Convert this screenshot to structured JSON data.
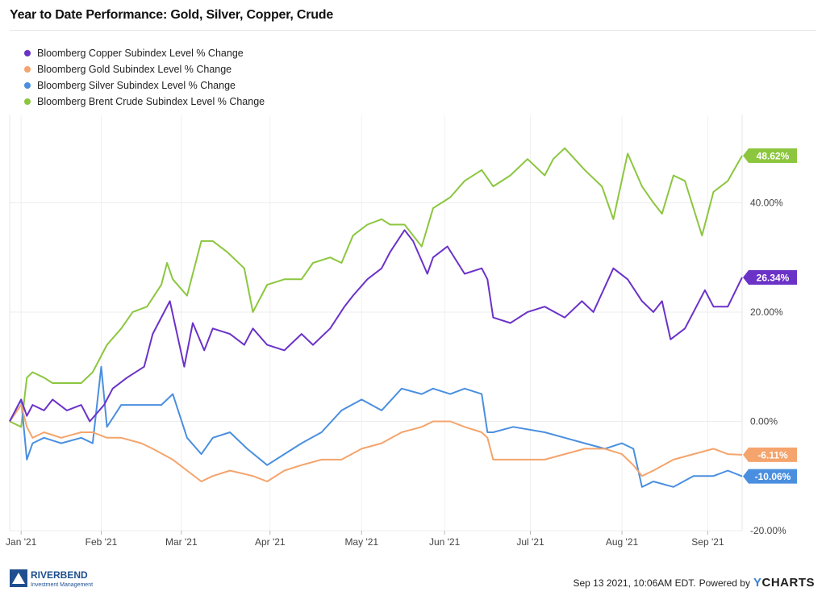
{
  "title": "Year to Date Performance: Gold, Silver, Copper, Crude",
  "footer": {
    "timestamp": "Sep 13 2021, 10:06AM EDT.",
    "powered_by": "Powered by",
    "brand": "CHARTS",
    "brand_y": "Y"
  },
  "logo": {
    "name": "RIVERBEND",
    "sub": "Investment Management"
  },
  "chart_data": {
    "type": "line",
    "y_unit": "% change",
    "ylim": [
      -20,
      56
    ],
    "x_range": [
      "2020-12-31",
      "2021-09-13"
    ],
    "y_ticks": [
      -20,
      0,
      20,
      40
    ],
    "y_tick_labels": [
      "-20.00%",
      "0.00%",
      "20.00%",
      "40.00%"
    ],
    "x_ticks": [
      {
        "date": "2021-01-04",
        "label": "Jan '21"
      },
      {
        "date": "2021-02-01",
        "label": "Feb '21"
      },
      {
        "date": "2021-03-01",
        "label": "Mar '21"
      },
      {
        "date": "2021-04-01",
        "label": "Apr '21"
      },
      {
        "date": "2021-05-03",
        "label": "May '21"
      },
      {
        "date": "2021-06-01",
        "label": "Jun '21"
      },
      {
        "date": "2021-07-01",
        "label": "Jul '21"
      },
      {
        "date": "2021-08-02",
        "label": "Aug '21"
      },
      {
        "date": "2021-09-01",
        "label": "Sep '21"
      }
    ],
    "grid": "horizontal",
    "legend_position": "top-left",
    "series": [
      {
        "name": "Bloomberg Copper Subindex Level % Change",
        "color": "#6b32c8",
        "last_label": "26.34%",
        "x": [
          "2020-12-31",
          "2021-01-04",
          "2021-01-06",
          "2021-01-08",
          "2021-01-12",
          "2021-01-15",
          "2021-01-20",
          "2021-01-25",
          "2021-01-28",
          "2021-02-02",
          "2021-02-05",
          "2021-02-10",
          "2021-02-16",
          "2021-02-19",
          "2021-02-23",
          "2021-02-25",
          "2021-03-02",
          "2021-03-05",
          "2021-03-09",
          "2021-03-12",
          "2021-03-18",
          "2021-03-23",
          "2021-03-26",
          "2021-03-31",
          "2021-04-06",
          "2021-04-12",
          "2021-04-16",
          "2021-04-22",
          "2021-04-27",
          "2021-04-30",
          "2021-05-05",
          "2021-05-10",
          "2021-05-13",
          "2021-05-18",
          "2021-05-21",
          "2021-05-26",
          "2021-05-28",
          "2021-06-02",
          "2021-06-08",
          "2021-06-14",
          "2021-06-16",
          "2021-06-18",
          "2021-06-24",
          "2021-06-30",
          "2021-07-06",
          "2021-07-13",
          "2021-07-19",
          "2021-07-23",
          "2021-07-30",
          "2021-08-04",
          "2021-08-09",
          "2021-08-13",
          "2021-08-16",
          "2021-08-19",
          "2021-08-24",
          "2021-08-31",
          "2021-09-03",
          "2021-09-08",
          "2021-09-13"
        ],
        "y": [
          0,
          4,
          1,
          3,
          2,
          4,
          2,
          3,
          0,
          3,
          6,
          8,
          10,
          16,
          20,
          22,
          10,
          18,
          13,
          17,
          16,
          14,
          17,
          14,
          13,
          16,
          14,
          17,
          21,
          23,
          26,
          28,
          31,
          35,
          33,
          27,
          30,
          32,
          27,
          28,
          26,
          19,
          18,
          20,
          21,
          19,
          22,
          20,
          28,
          26,
          22,
          20,
          22,
          15,
          17,
          24,
          21,
          21,
          26.34
        ]
      },
      {
        "name": "Bloomberg Gold Subindex Level % Change",
        "color": "#f4a46c",
        "last_label": "-6.11%",
        "x": [
          "2020-12-31",
          "2021-01-04",
          "2021-01-06",
          "2021-01-08",
          "2021-01-12",
          "2021-01-18",
          "2021-01-25",
          "2021-01-29",
          "2021-02-03",
          "2021-02-08",
          "2021-02-15",
          "2021-02-19",
          "2021-02-26",
          "2021-03-03",
          "2021-03-08",
          "2021-03-12",
          "2021-03-18",
          "2021-03-26",
          "2021-03-31",
          "2021-04-06",
          "2021-04-12",
          "2021-04-19",
          "2021-04-26",
          "2021-05-03",
          "2021-05-10",
          "2021-05-17",
          "2021-05-24",
          "2021-05-28",
          "2021-06-03",
          "2021-06-08",
          "2021-06-14",
          "2021-06-16",
          "2021-06-18",
          "2021-06-25",
          "2021-07-06",
          "2021-07-13",
          "2021-07-20",
          "2021-07-27",
          "2021-08-02",
          "2021-08-06",
          "2021-08-09",
          "2021-08-13",
          "2021-08-20",
          "2021-08-27",
          "2021-09-03",
          "2021-09-08",
          "2021-09-13"
        ],
        "y": [
          0,
          3,
          -1,
          -3,
          -2,
          -3,
          -2,
          -2,
          -3,
          -3,
          -4,
          -5,
          -7,
          -9,
          -11,
          -10,
          -9,
          -10,
          -11,
          -9,
          -8,
          -7,
          -7,
          -5,
          -4,
          -2,
          -1,
          0,
          0,
          -1,
          -2,
          -3,
          -7,
          -7,
          -7,
          -6,
          -5,
          -5,
          -6,
          -8,
          -10,
          -9,
          -7,
          -6,
          -5,
          -6,
          -6.11
        ]
      },
      {
        "name": "Bloomberg Silver Subindex Level % Change",
        "color": "#4a8fdf",
        "last_label": "-10.06%",
        "x": [
          "2020-12-31",
          "2021-01-04",
          "2021-01-06",
          "2021-01-08",
          "2021-01-12",
          "2021-01-18",
          "2021-01-25",
          "2021-01-29",
          "2021-02-01",
          "2021-02-03",
          "2021-02-08",
          "2021-02-15",
          "2021-02-22",
          "2021-02-26",
          "2021-03-03",
          "2021-03-08",
          "2021-03-12",
          "2021-03-18",
          "2021-03-24",
          "2021-03-31",
          "2021-04-06",
          "2021-04-12",
          "2021-04-19",
          "2021-04-26",
          "2021-05-03",
          "2021-05-10",
          "2021-05-17",
          "2021-05-24",
          "2021-05-28",
          "2021-06-03",
          "2021-06-08",
          "2021-06-14",
          "2021-06-16",
          "2021-06-18",
          "2021-06-25",
          "2021-07-06",
          "2021-07-13",
          "2021-07-20",
          "2021-07-27",
          "2021-08-02",
          "2021-08-06",
          "2021-08-09",
          "2021-08-13",
          "2021-08-20",
          "2021-08-27",
          "2021-09-03",
          "2021-09-08",
          "2021-09-13"
        ],
        "y": [
          0,
          4,
          -7,
          -4,
          -3,
          -4,
          -3,
          -4,
          10,
          -1,
          3,
          3,
          3,
          5,
          -3,
          -6,
          -3,
          -2,
          -5,
          -8,
          -6,
          -4,
          -2,
          2,
          4,
          2,
          6,
          5,
          6,
          5,
          6,
          5,
          -2,
          -2,
          -1,
          -2,
          -3,
          -4,
          -5,
          -4,
          -5,
          -12,
          -11,
          -12,
          -10,
          -10,
          -9,
          -10.06
        ]
      },
      {
        "name": "Bloomberg Brent Crude Subindex Level % Change",
        "color": "#8cc63f",
        "last_label": "48.62%",
        "x": [
          "2020-12-31",
          "2021-01-04",
          "2021-01-06",
          "2021-01-08",
          "2021-01-12",
          "2021-01-15",
          "2021-01-20",
          "2021-01-25",
          "2021-01-29",
          "2021-02-03",
          "2021-02-08",
          "2021-02-12",
          "2021-02-17",
          "2021-02-22",
          "2021-02-24",
          "2021-02-26",
          "2021-03-03",
          "2021-03-08",
          "2021-03-12",
          "2021-03-17",
          "2021-03-23",
          "2021-03-26",
          "2021-03-31",
          "2021-04-06",
          "2021-04-12",
          "2021-04-16",
          "2021-04-22",
          "2021-04-26",
          "2021-04-30",
          "2021-05-05",
          "2021-05-10",
          "2021-05-13",
          "2021-05-18",
          "2021-05-24",
          "2021-05-28",
          "2021-06-03",
          "2021-06-08",
          "2021-06-14",
          "2021-06-18",
          "2021-06-24",
          "2021-06-30",
          "2021-07-06",
          "2021-07-09",
          "2021-07-13",
          "2021-07-20",
          "2021-07-26",
          "2021-07-30",
          "2021-08-04",
          "2021-08-09",
          "2021-08-13",
          "2021-08-16",
          "2021-08-20",
          "2021-08-24",
          "2021-08-30",
          "2021-09-03",
          "2021-09-08",
          "2021-09-13"
        ],
        "y": [
          0,
          -1,
          8,
          9,
          8,
          7,
          7,
          7,
          9,
          14,
          17,
          20,
          21,
          25,
          29,
          26,
          23,
          33,
          33,
          31,
          28,
          20,
          25,
          26,
          26,
          29,
          30,
          29,
          34,
          36,
          37,
          36,
          36,
          32,
          39,
          41,
          44,
          46,
          43,
          45,
          48,
          45,
          48,
          50,
          46,
          43,
          37,
          49,
          43,
          40,
          38,
          45,
          44,
          34,
          42,
          44,
          48.62
        ]
      }
    ]
  }
}
